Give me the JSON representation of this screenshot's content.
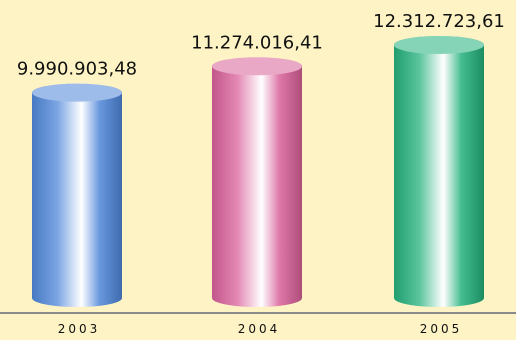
{
  "chart_data": {
    "type": "bar",
    "categories": [
      "2003",
      "2004",
      "2005"
    ],
    "values": [
      9990903.48,
      11274016.41,
      12312723.61
    ],
    "value_labels": [
      "9.990.903,48",
      "11.274.016,41",
      "12.312.723,61"
    ],
    "title": "",
    "xlabel": "",
    "ylabel": "",
    "ylim": [
      0,
      14500000
    ],
    "grid": false,
    "legend": "none",
    "colors": [
      "#4f86d9",
      "#d9609a",
      "#23b07c"
    ],
    "background": "#fdf3c5",
    "axis_color": "#8a8a8a"
  }
}
